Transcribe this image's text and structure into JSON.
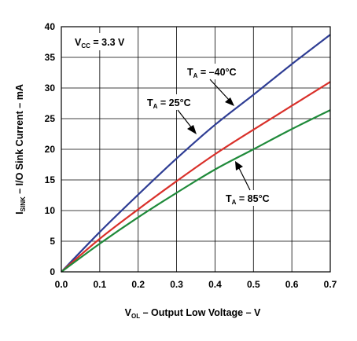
{
  "chart_data": {
    "type": "line",
    "title": "",
    "xlabel": {
      "main": "V",
      "sub": "OL",
      "rest": " – Output Low Voltage – V"
    },
    "ylabel": {
      "main": "I",
      "sub": "SINK",
      "rest": " – I/O Sink Current – mA"
    },
    "xlim": [
      0,
      0.7
    ],
    "ylim": [
      0,
      40
    ],
    "x_ticks": [
      "0.0",
      "0.1",
      "0.2",
      "0.3",
      "0.4",
      "0.5",
      "0.6",
      "0.7"
    ],
    "y_ticks": [
      "0",
      "5",
      "10",
      "15",
      "20",
      "25",
      "30",
      "35",
      "40"
    ],
    "grid": true,
    "condition": {
      "main": "V",
      "sub": "CC",
      "rest": " = 3.3 V"
    },
    "series": [
      {
        "name": {
          "main": "T",
          "sub": "A",
          "rest": " = –40°C"
        },
        "color": "#2e3d94",
        "x": [
          0,
          0.1,
          0.2,
          0.3,
          0.4,
          0.5,
          0.6,
          0.7
        ],
        "y": [
          0,
          6.5,
          12.6,
          18.5,
          24.0,
          28.9,
          33.9,
          38.7
        ]
      },
      {
        "name": {
          "main": "T",
          "sub": "A",
          "rest": " = 25°C"
        },
        "color": "#d9302a",
        "x": [
          0,
          0.1,
          0.2,
          0.3,
          0.4,
          0.5,
          0.6,
          0.7
        ],
        "y": [
          0,
          5.4,
          10.2,
          14.8,
          19.2,
          23.2,
          27.1,
          31.0
        ]
      },
      {
        "name": {
          "main": "T",
          "sub": "A",
          "rest": " = 85°C"
        },
        "color": "#1f8a3a",
        "x": [
          0,
          0.1,
          0.2,
          0.3,
          0.4,
          0.5,
          0.6,
          0.7
        ],
        "y": [
          0,
          4.6,
          8.9,
          12.9,
          16.7,
          20.0,
          23.3,
          26.4
        ]
      }
    ]
  }
}
